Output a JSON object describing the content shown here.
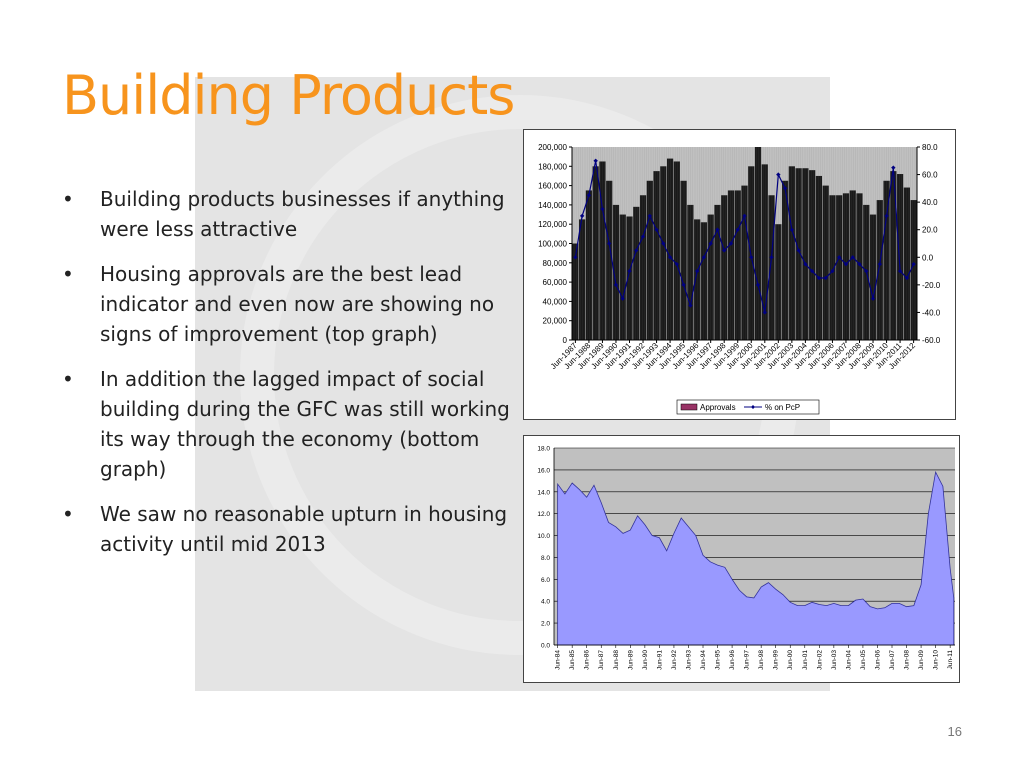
{
  "slide": {
    "title": "Building Products",
    "bullets": [
      "Building products businesses if anything were less attractive",
      "Housing approvals are the best lead indicator and even now are showing no signs of improvement (top graph)",
      "In addition the lagged impact of social building during the GFC was still working its way through the economy (bottom graph)",
      "We saw no reasonable upturn in housing activity until mid 2013"
    ],
    "page_number": "16"
  },
  "colors": {
    "title": "#f7941d",
    "approvals": "#1a1a1a",
    "pcp": "#000080",
    "area": "#9999ff",
    "plot_bg": "#c0c0c0"
  },
  "chart_data": [
    {
      "type": "bar",
      "x_start": "Jun-1987",
      "x_end": "Jun-2012",
      "x_ticks": [
        "Jun-1987",
        "Jun-1988",
        "Jun-1989",
        "Jun-1990",
        "Jun-1991",
        "Jun-1992",
        "Jun-1993",
        "Jun-1994",
        "Jun-1995",
        "Jun-1996",
        "Jun-1997",
        "Jun-1998",
        "Jun-1999",
        "Jun-2000",
        "Jun-2001",
        "Jun-2002",
        "Jun-2003",
        "Jun-2004",
        "Jun-2005",
        "Jun-2006",
        "Jun-2007",
        "Jun-2008",
        "Jun-2009",
        "Jun-2010",
        "Jun-2011",
        "Jun-2012"
      ],
      "y_left_ticks": [
        "0",
        "20,000",
        "40,000",
        "60,000",
        "80,000",
        "100,000",
        "120,000",
        "140,000",
        "160,000",
        "180,000",
        "200,000"
      ],
      "y_left_range": [
        0,
        200000
      ],
      "y_right_ticks": [
        "-60.0",
        "-40.0",
        "-20.0",
        "0.0",
        "20.0",
        "40.0",
        "60.0",
        "80.0"
      ],
      "y_right_range": [
        -60,
        80
      ],
      "legend": [
        "Approvals",
        "% on PcP"
      ],
      "legend_position": "bottom",
      "series": [
        {
          "name": "Approvals",
          "kind": "bar",
          "x": [
            "1987-06",
            "1987-12",
            "1988-06",
            "1988-12",
            "1989-06",
            "1989-12",
            "1990-06",
            "1990-12",
            "1991-06",
            "1991-12",
            "1992-06",
            "1992-12",
            "1993-06",
            "1993-12",
            "1994-06",
            "1994-12",
            "1995-06",
            "1995-12",
            "1996-06",
            "1996-12",
            "1997-06",
            "1997-12",
            "1998-06",
            "1998-12",
            "1999-06",
            "1999-12",
            "2000-06",
            "2000-12",
            "2001-06",
            "2001-12",
            "2002-06",
            "2002-12",
            "2003-06",
            "2003-12",
            "2004-06",
            "2004-12",
            "2005-06",
            "2005-12",
            "2006-06",
            "2006-12",
            "2007-06",
            "2007-12",
            "2008-06",
            "2008-12",
            "2009-06",
            "2009-12",
            "2010-06",
            "2010-12",
            "2011-06",
            "2011-12",
            "2012-06"
          ],
          "values": [
            100000,
            125000,
            155000,
            180000,
            185000,
            165000,
            140000,
            130000,
            128000,
            138000,
            150000,
            165000,
            175000,
            180000,
            188000,
            185000,
            165000,
            140000,
            125000,
            122000,
            130000,
            140000,
            150000,
            155000,
            155000,
            160000,
            180000,
            200000,
            182000,
            150000,
            120000,
            165000,
            180000,
            178000,
            178000,
            176000,
            170000,
            160000,
            150000,
            150000,
            152000,
            155000,
            152000,
            140000,
            130000,
            145000,
            165000,
            175000,
            172000,
            158000,
            145000
          ]
        },
        {
          "name": "% on PcP",
          "kind": "line",
          "x": [
            "1987-06",
            "1987-12",
            "1988-06",
            "1988-12",
            "1989-06",
            "1989-12",
            "1990-06",
            "1990-12",
            "1991-06",
            "1991-12",
            "1992-06",
            "1992-12",
            "1993-06",
            "1993-12",
            "1994-06",
            "1994-12",
            "1995-06",
            "1995-12",
            "1996-06",
            "1996-12",
            "1997-06",
            "1997-12",
            "1998-06",
            "1998-12",
            "1999-06",
            "1999-12",
            "2000-06",
            "2000-12",
            "2001-06",
            "2001-12",
            "2002-06",
            "2002-12",
            "2003-06",
            "2003-12",
            "2004-06",
            "2004-12",
            "2005-06",
            "2005-12",
            "2006-06",
            "2006-12",
            "2007-06",
            "2007-12",
            "2008-06",
            "2008-12",
            "2009-06",
            "2009-12",
            "2010-06",
            "2010-12",
            "2011-06",
            "2011-12",
            "2012-06"
          ],
          "values": [
            0,
            30,
            45,
            70,
            35,
            10,
            -20,
            -30,
            -10,
            5,
            15,
            30,
            20,
            10,
            0,
            -5,
            -20,
            -35,
            -10,
            0,
            10,
            20,
            5,
            10,
            20,
            30,
            0,
            -20,
            -40,
            0,
            60,
            50,
            20,
            5,
            -5,
            -10,
            -15,
            -15,
            -10,
            0,
            -5,
            0,
            -5,
            -10,
            -30,
            -5,
            30,
            65,
            -10,
            -15,
            -5
          ]
        }
      ]
    },
    {
      "type": "area",
      "x_ticks": [
        "Jun-84",
        "Jun-85",
        "Jun-86",
        "Jun-87",
        "Jun-88",
        "Jun-89",
        "Jun-90",
        "Jun-91",
        "Jun-92",
        "Jun-93",
        "Jun-94",
        "Jun-95",
        "Jun-96",
        "Jun-97",
        "Jun-98",
        "Jun-99",
        "Jun-00",
        "Jun-01",
        "Jun-02",
        "Jun-03",
        "Jun-04",
        "Jun-05",
        "Jun-06",
        "Jun-07",
        "Jun-08",
        "Jun-09",
        "Jun-10",
        "Jun-11"
      ],
      "y_ticks": [
        "0.0",
        "2.0",
        "4.0",
        "6.0",
        "8.0",
        "10.0",
        "12.0",
        "14.0",
        "16.0",
        "18.0"
      ],
      "ylim": [
        0,
        18
      ],
      "x_start": "1984-06",
      "x_end": "2011-09",
      "series": [
        {
          "x": [
            "1984-06",
            "1984-12",
            "1985-06",
            "1985-12",
            "1986-06",
            "1986-12",
            "1987-06",
            "1987-12",
            "1988-06",
            "1988-12",
            "1989-06",
            "1989-12",
            "1990-06",
            "1990-12",
            "1991-06",
            "1991-12",
            "1992-06",
            "1992-12",
            "1993-06",
            "1993-12",
            "1994-06",
            "1994-12",
            "1995-06",
            "1995-12",
            "1996-06",
            "1996-12",
            "1997-06",
            "1997-12",
            "1998-06",
            "1998-12",
            "1999-06",
            "1999-12",
            "2000-06",
            "2000-12",
            "2001-06",
            "2001-12",
            "2002-06",
            "2002-12",
            "2003-06",
            "2003-12",
            "2004-06",
            "2004-12",
            "2005-06",
            "2005-12",
            "2006-06",
            "2006-12",
            "2007-06",
            "2007-12",
            "2008-06",
            "2008-12",
            "2009-06",
            "2009-12",
            "2010-06",
            "2010-12",
            "2011-06",
            "2011-09"
          ],
          "values": [
            14.7,
            13.8,
            14.8,
            14.2,
            13.5,
            14.6,
            13.0,
            11.2,
            10.8,
            10.2,
            10.5,
            11.8,
            11.0,
            10.0,
            9.8,
            8.6,
            10.2,
            11.6,
            10.8,
            10.0,
            8.2,
            7.6,
            7.3,
            7.1,
            6.0,
            5.0,
            4.4,
            4.3,
            5.3,
            5.7,
            5.1,
            4.6,
            3.9,
            3.6,
            3.6,
            3.9,
            3.7,
            3.6,
            3.8,
            3.6,
            3.6,
            4.1,
            4.2,
            3.5,
            3.3,
            3.4,
            3.8,
            3.8,
            3.5,
            3.6,
            5.5,
            12.0,
            15.8,
            14.5,
            7.0,
            4.3
          ]
        }
      ]
    }
  ]
}
